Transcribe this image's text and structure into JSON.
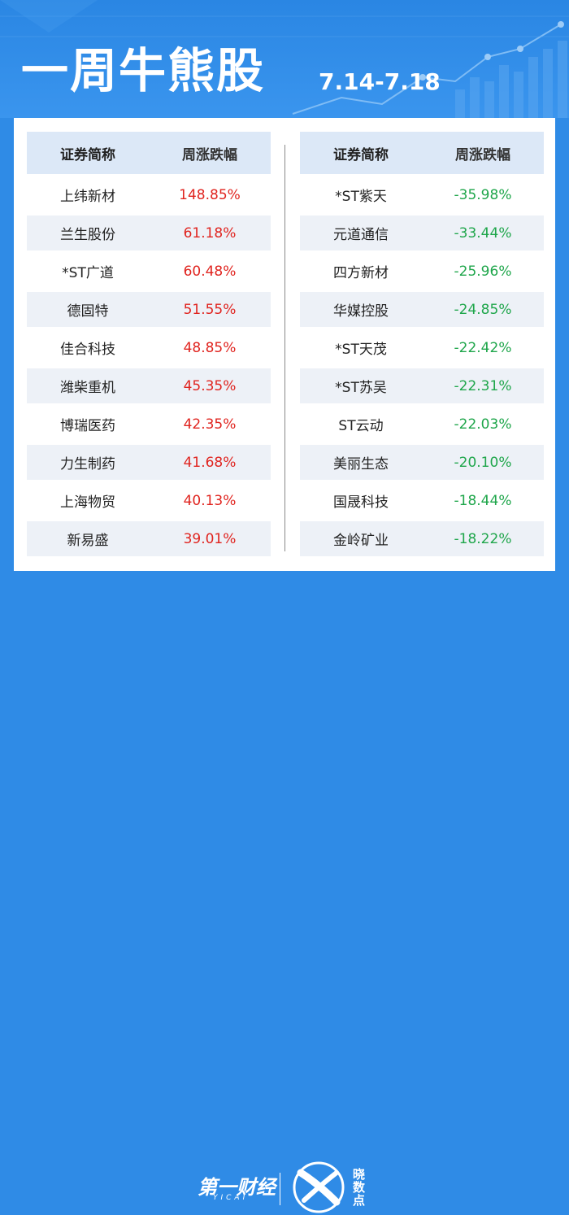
{
  "header": {
    "title": "一周牛熊股",
    "date": "7.14-7.18"
  },
  "left_table": {
    "col_name": "证券简称",
    "col_change": "周涨跌幅",
    "rows": [
      {
        "name": "上纬新材",
        "change": "148.85%"
      },
      {
        "name": "兰生股份",
        "change": "61.18%"
      },
      {
        "name": "*ST广道",
        "change": "60.48%"
      },
      {
        "name": "德固特",
        "change": "51.55%"
      },
      {
        "name": "佳合科技",
        "change": "48.85%"
      },
      {
        "name": "潍柴重机",
        "change": "45.35%"
      },
      {
        "name": "博瑞医药",
        "change": "42.35%"
      },
      {
        "name": "力生制药",
        "change": "41.68%"
      },
      {
        "name": "上海物贸",
        "change": "40.13%"
      },
      {
        "name": "新易盛",
        "change": "39.01%"
      }
    ]
  },
  "right_table": {
    "col_name": "证券简称",
    "col_change": "周涨跌幅",
    "rows": [
      {
        "name": "*ST紫天",
        "change": "-35.98%"
      },
      {
        "name": "元道通信",
        "change": "-33.44%"
      },
      {
        "name": "四方新材",
        "change": "-25.96%"
      },
      {
        "name": "华媒控股",
        "change": "-24.85%"
      },
      {
        "name": "*ST天茂",
        "change": "-22.42%"
      },
      {
        "name": "*ST苏吴",
        "change": "-22.31%"
      },
      {
        "name": "ST云动",
        "change": "-22.03%"
      },
      {
        "name": "美丽生态",
        "change": "-20.10%"
      },
      {
        "name": "国晟科技",
        "change": "-18.44%"
      },
      {
        "name": "金岭矿业",
        "change": "-18.22%"
      }
    ]
  },
  "footer": {
    "brand": "第一财经",
    "brand_sub": "YICAI",
    "product": "晓数点"
  },
  "colors": {
    "background": "#2f8be6",
    "gain": "#e0241f",
    "loss": "#1fa64b",
    "header_row": "#dce8f7",
    "shaded_row": "#edf1f7"
  },
  "icons": [
    "trend-chart-decoration-icon",
    "xs-logo-icon"
  ]
}
